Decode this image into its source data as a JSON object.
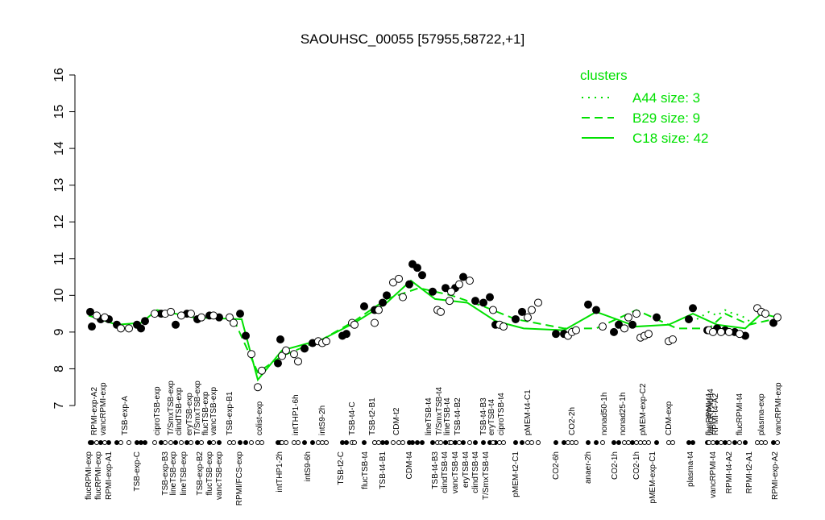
{
  "chart_data": {
    "type": "scatter",
    "title": "SAOUHSC_00055 [57955,58722,+1]",
    "xlim": [
      0,
      880
    ],
    "ylim": [
      7,
      16
    ],
    "yticks": [
      7,
      8,
      9,
      10,
      11,
      12,
      13,
      14,
      15,
      16
    ],
    "series": [
      {
        "fill": "#000000",
        "x": [
          12,
          14,
          25,
          35,
          45,
          70,
          75,
          80,
          100,
          118,
          132,
          145,
          160,
          172,
          198,
          205,
          245,
          248,
          278,
          288,
          325,
          330,
          352,
          365,
          375,
          380,
          408,
          412,
          418,
          424,
          437,
          453,
          465,
          475,
          490,
          500,
          508,
          515,
          540,
          548,
          590,
          600,
          630,
          640,
          662,
          668,
          685,
          715,
          760,
          755,
          778,
          790,
          800,
          812,
          825,
          860
        ],
        "values": [
          9.55,
          9.15,
          9.35,
          9.35,
          9.2,
          9.2,
          9.1,
          9.3,
          9.5,
          9.2,
          9.5,
          9.35,
          9.45,
          9.4,
          9.5,
          8.9,
          8.15,
          8.8,
          8.55,
          8.7,
          8.9,
          8.95,
          9.7,
          9.6,
          9.8,
          10.0,
          10.3,
          10.85,
          10.75,
          10.55,
          10.1,
          10.2,
          10.2,
          10.5,
          9.85,
          9.8,
          9.95,
          9.2,
          9.35,
          9.55,
          8.95,
          8.95,
          9.75,
          9.6,
          9.0,
          9.2,
          9.2,
          9.4,
          9.65,
          9.35,
          9.05,
          9.1,
          9.05,
          9.0,
          8.9,
          9.25
        ]
      },
      {
        "fill": "#ffffff",
        "x": [
          20,
          30,
          50,
          60,
          92,
          105,
          112,
          125,
          137,
          150,
          165,
          185,
          190,
          212,
          220,
          225,
          250,
          255,
          270,
          265,
          295,
          300,
          305,
          337,
          340,
          365,
          370,
          388,
          395,
          400,
          443,
          447,
          458,
          460,
          470,
          483,
          512,
          520,
          525,
          555,
          560,
          568,
          605,
          610,
          615,
          648,
          675,
          680,
          690,
          695,
          700,
          705,
          730,
          735,
          780,
          785,
          795,
          805,
          818,
          840,
          845,
          850,
          865
        ],
        "values": [
          9.45,
          9.4,
          9.1,
          9.1,
          9.5,
          9.5,
          9.55,
          9.45,
          9.5,
          9.4,
          9.45,
          9.4,
          9.25,
          8.4,
          7.5,
          7.95,
          8.35,
          8.5,
          8.2,
          8.4,
          8.75,
          8.7,
          8.75,
          9.25,
          9.2,
          9.25,
          9.6,
          10.35,
          10.45,
          9.95,
          9.6,
          9.55,
          9.85,
          10.1,
          10.3,
          10.4,
          9.6,
          9.2,
          9.15,
          9.4,
          9.6,
          9.8,
          8.9,
          9.0,
          9.05,
          9.15,
          9.1,
          9.4,
          9.5,
          8.85,
          8.9,
          8.95,
          8.75,
          8.8,
          9.05,
          9.0,
          9.0,
          9.0,
          8.95,
          9.65,
          9.55,
          9.5,
          9.4
        ]
      }
    ],
    "clusters": {
      "title": "clusters",
      "color": "#00e000",
      "lines": [
        {
          "name": "A44 size: 3",
          "dash": "2,6",
          "x": [
            765,
            780,
            790,
            800,
            810,
            820,
            830
          ],
          "values": [
            9.35,
            9.55,
            9.45,
            9.6,
            9.5,
            9.45,
            9.3
          ]
        },
        {
          "name": "B29 size: 9",
          "dash": "10,6",
          "x": [
            190,
            220,
            250,
            300,
            340,
            380,
            420,
            460,
            500,
            540,
            600,
            640,
            690,
            740,
            780,
            800,
            830,
            860
          ],
          "values": [
            9.35,
            7.9,
            8.35,
            8.8,
            9.3,
            9.9,
            10.2,
            10.0,
            9.7,
            9.35,
            9.1,
            9.1,
            9.6,
            9.1,
            9.1,
            9.5,
            9.2,
            9.35
          ]
        },
        {
          "name": "C18 size: 42",
          "dash": "none",
          "x": [
            10,
            45,
            75,
            95,
            140,
            200,
            220,
            250,
            300,
            340,
            380,
            410,
            440,
            480,
            515,
            550,
            600,
            640,
            690,
            730,
            760,
            790,
            825,
            845,
            865
          ],
          "values": [
            9.45,
            9.2,
            9.25,
            9.6,
            9.4,
            9.35,
            7.7,
            8.5,
            8.8,
            9.25,
            9.8,
            10.4,
            9.9,
            9.8,
            9.3,
            9.1,
            9.05,
            9.55,
            9.15,
            9.2,
            9.5,
            9.2,
            9.1,
            9.5,
            9.4
          ]
        }
      ]
    },
    "top_labels": [
      "RPMI-exp-A2",
      "vancRPMI-exp",
      "TSB-exp-A",
      "ciproTSB-exp",
      "T/SmxTSB-exp",
      "clindTSB-exp",
      "eryTSB-exp",
      "T/SmxTSB-exp",
      "flucTSB-exp",
      "vancTSB-exp",
      "TSB-exp-B1",
      "colist-exp",
      "intTHP1-6h",
      "intS9-2h",
      "TSB-t4-C",
      "TSB-t2-B1",
      "CDM-t2",
      "lineTSB-t4",
      "T/SmxTSB-t4",
      "lineTSB-t4",
      "TSB-t4-B2",
      "TSB-t4-B3",
      "eryTSB-t4",
      "ciproTSB-t4",
      "pMEM-t4-C1",
      "CO2-2h",
      "nonad50-1h",
      "nonad25-1h",
      "pMEM-exp-C2",
      "CDM-exp",
      "flucRPMI-t4",
      "RPMI-t4-A2",
      "vancRPMI-t4",
      "flucRPMI-t4",
      "plasma-exp",
      "vancRPMI-exp"
    ],
    "top_label_x": [
      17,
      28,
      55,
      95,
      112,
      122,
      135,
      145,
      155,
      165,
      185,
      222,
      267,
      300,
      337,
      362,
      392,
      432,
      445,
      455,
      468,
      500,
      510,
      522,
      555,
      610,
      650,
      673,
      698,
      730,
      780,
      788,
      782,
      818,
      845,
      866
    ],
    "bottom_labels": [
      "flucRPMI-exp",
      "flucRPMI-exp",
      "RPMI-exp-A1",
      "TSB-exp-C",
      "TSB-exp-B3",
      "lineTSB-exp",
      "lineTSB-exp",
      "TSB-exp-B2",
      "flucTSB-exp",
      "vancTSB-exp",
      "RPMI/FCS-exp",
      "intTHP1-2h",
      "intS9-6h",
      "TSB-t2-C",
      "flucTSB-t4",
      "TSB-t4-B1",
      "CDM-t4",
      "TSB-t4-B3",
      "clindTSB-t4",
      "vancTSB-t4",
      "eryTSB-t4",
      "clindTSB-t4",
      "T/SmxTSB-t4",
      "pMEM-t2-C1",
      "CO2-6h",
      "anaer-2h",
      "CO2-1h",
      "CO2-1h",
      "pMEM-exp-C1",
      "plasma-t4",
      "vancRPMI-t4",
      "RPMI-t4-A2",
      "RPMI-t2-A1",
      "RPMI-exp-A2"
    ],
    "bottom_label_x": [
      10,
      22,
      35,
      70,
      105,
      115,
      128,
      148,
      160,
      172,
      197,
      247,
      282,
      323,
      353,
      375,
      408,
      440,
      452,
      465,
      478,
      490,
      503,
      540,
      590,
      630,
      663,
      690,
      710,
      757,
      785,
      805,
      830,
      862
    ]
  }
}
